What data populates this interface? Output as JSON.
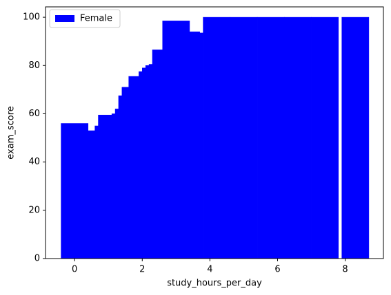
{
  "chart_data": {
    "type": "bar",
    "xlabel": "study_hours_per_day",
    "ylabel": "exam_score",
    "series": [
      {
        "name": "Female",
        "color": "#0000ff",
        "x": [
          0.0,
          0.8,
          0.9,
          1.0,
          1.1,
          1.5,
          1.6,
          1.7,
          1.8,
          2.0,
          2.3,
          2.4,
          2.5,
          2.6,
          2.7,
          3.0,
          3.3,
          3.4,
          4.2,
          5.0,
          5.8,
          6.6,
          7.4,
          8.3
        ],
        "values": [
          56,
          53,
          52,
          55,
          59.5,
          60,
          62,
          67.5,
          71,
          75.5,
          77.5,
          79,
          80,
          80.5,
          86.5,
          98.5,
          94,
          93.5,
          100,
          100,
          100,
          100,
          100,
          100
        ]
      }
    ],
    "bar_width": 0.8,
    "xlim": [
      -0.86,
      9.13
    ],
    "xticks": [
      0,
      2,
      4,
      6,
      8
    ],
    "ylim": [
      0,
      104.3
    ],
    "yticks": [
      0,
      20,
      40,
      60,
      80,
      100
    ],
    "legend": "upper left"
  }
}
